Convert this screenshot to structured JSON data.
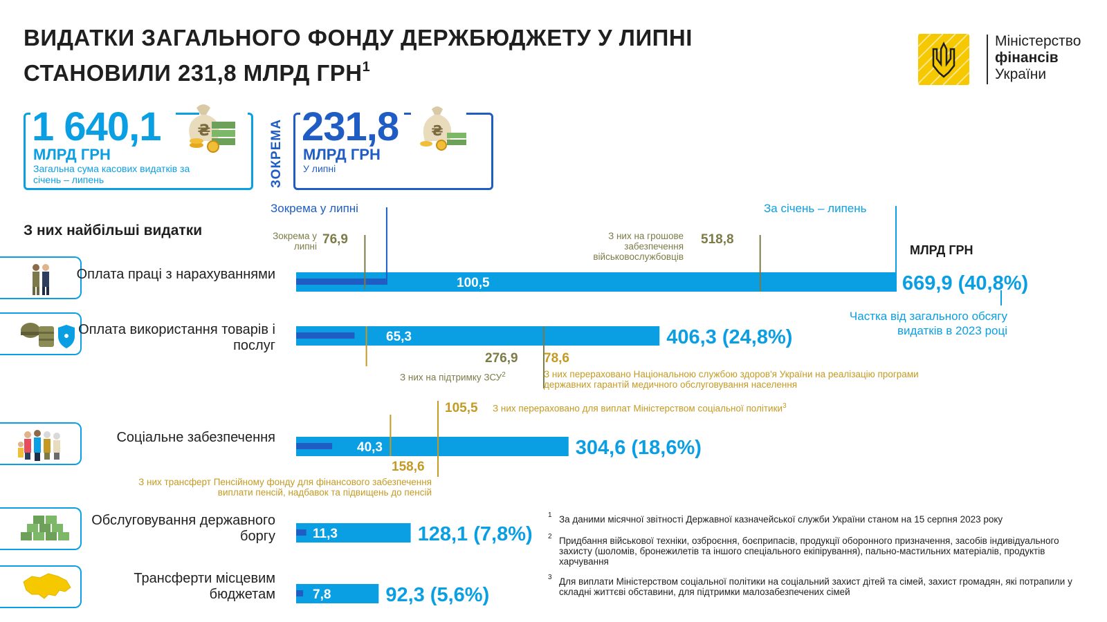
{
  "header": {
    "title_line1": "ВИДАТКИ ЗАГАЛЬНОГО ФОНДУ ДЕРЖБЮДЖЕТУ У ЛИПНІ",
    "title_line2": "СТАНОВИЛИ 231,8 МЛРД ГРН",
    "title_sup": "1",
    "logo_line1": "Міністерство",
    "logo_line2": "фінансів",
    "logo_line3": "України"
  },
  "summary": {
    "total_value": "1 640,1",
    "total_unit": "МЛРД ГРН",
    "total_desc": "Загальна сума касових видатків за січень – липень",
    "vertical_label": "ЗОКРЕМА",
    "july_value": "231,8",
    "july_unit": "МЛРД ГРН",
    "july_desc": "У липні"
  },
  "labels": {
    "section_title": "З них найбільші видатки",
    "july_legend": "Зокрема у липні",
    "ytd_legend": "За січень – липень",
    "unit": "МЛРД ГРН",
    "share_note": "Частка від загального обсягу видатків в 2023 році"
  },
  "annotations": {
    "wages_july_label": "Зокрема у липні",
    "wages_july_value": "76,9",
    "wages_military_label": "З них на грошове забезпечення військовослужбовців",
    "wages_military_value": "518,8",
    "goods_zsu_value": "276,9",
    "goods_zsu_label": "З них на підтримку ЗСУ",
    "goods_zsu_sup": "2",
    "goods_health_value": "78,6",
    "goods_health_label": "З них перераховано Національною службою здоров'я України на реалізацію програми державних гарантій медичного обслуговування населення",
    "social_minsoc_value": "105,5",
    "social_minsoc_label": "З них перераховано для виплат Міністерством соціальної політики",
    "social_minsoc_sup": "3",
    "social_pension_value": "158,6",
    "social_pension_label": "З них трансферт Пенсійному фонду для фінансового забезпечення виплати пенсій, надбавок та підвищень до пенсій"
  },
  "chart_data": {
    "type": "bar",
    "orientation": "horizontal",
    "unit": "МЛРД ГРН",
    "categories": [
      "Оплата праці з нарахуваннями",
      "Оплата використання товарів і послуг",
      "Соціальне забезпечення",
      "Обслуговування державного боргу",
      "Трансферти місцевим бюджетам"
    ],
    "series": [
      {
        "name": "За січень – липень",
        "values": [
          669.9,
          406.3,
          304.6,
          128.1,
          92.3
        ],
        "color": "#0a9ee3"
      },
      {
        "name": "Зокрема у липні",
        "values": [
          100.5,
          65.3,
          40.3,
          11.3,
          7.8
        ],
        "color": "#1f5cc4"
      }
    ],
    "ytd_labels": [
      "669,9 (40,8%)",
      "406,3 (24,8%)",
      "304,6 (18,6%)",
      "128,1 (7,8%)",
      "92,3 (5,6%)"
    ],
    "july_labels": [
      "100,5",
      "65,3",
      "40,3",
      "11,3",
      "7,8"
    ],
    "shares_percent": [
      40.8,
      24.8,
      18.6,
      7.8,
      5.6
    ],
    "sub_markers": [
      {
        "category": 0,
        "value": 76.9
      },
      {
        "category": 0,
        "value": 518.8
      },
      {
        "category": 1,
        "value": 276.9
      },
      {
        "category": 1,
        "value": 78.6
      },
      {
        "category": 2,
        "value": 158.6
      },
      {
        "category": 2,
        "value": 105.5
      }
    ]
  },
  "footnotes": [
    {
      "num": "1",
      "text": "За даними місячної звітності Державної казначейської служби України станом на 15 серпня 2023 року"
    },
    {
      "num": "2",
      "text": "Придбання військової техніки, озброєння, боєприпасів, продукції оборонного призначення, засобів індивідуального захисту (шоломів, бронежилетів та іншого спеціального екіпірування), пально-мастильних матеріалів, продуктів харчування"
    },
    {
      "num": "3",
      "text": "Для виплати Міністерством соціальної політики на соціальний захист дітей та сімей, захист громадян, які потрапили у складні життєві обставини, для підтримки малозабезпечених сімей"
    }
  ],
  "icons": [
    "people-icon",
    "military-gear-icon",
    "family-icon",
    "money-stack-icon",
    "ukraine-map-icon",
    "money-bag-icon",
    "trident-icon"
  ],
  "colors": {
    "accent": "#0a9ee3",
    "dark_accent": "#1f5cc4",
    "olive": "#7c7b47",
    "gold": "#c49a23",
    "logo_yellow": "#f5c800"
  }
}
